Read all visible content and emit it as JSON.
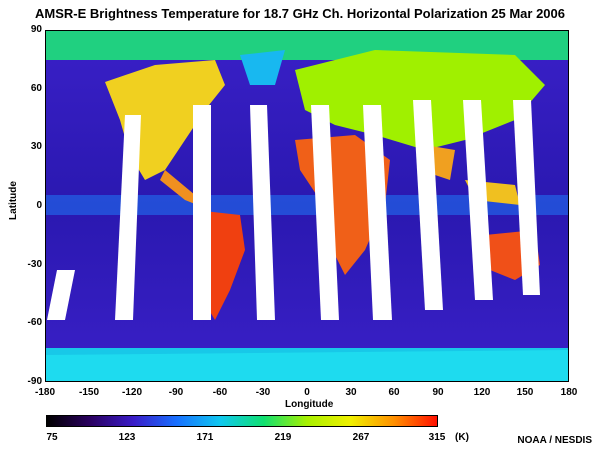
{
  "title": "AMSR-E Brightness Temperature for 18.7 GHz Ch. Horizontal Polarization  25 Mar 2006",
  "x_axis": {
    "label": "Longitude",
    "ticks": [
      "-180",
      "-150",
      "-120",
      "-90",
      "-60",
      "-30",
      "0",
      "30",
      "60",
      "90",
      "120",
      "150",
      "180"
    ],
    "values": [
      -180,
      -150,
      -120,
      -90,
      -60,
      -30,
      0,
      30,
      60,
      90,
      120,
      150,
      180
    ]
  },
  "y_axis": {
    "label": "Latitude",
    "ticks": [
      "90",
      "60",
      "30",
      "0",
      "-30",
      "-60",
      "-90"
    ],
    "values": [
      90,
      60,
      30,
      0,
      -30,
      -60,
      -90
    ]
  },
  "colorbar": {
    "ticks": [
      "75",
      "123",
      "171",
      "219",
      "267",
      "315"
    ],
    "values": [
      75,
      123,
      171,
      219,
      267,
      315
    ],
    "unit": "(K)",
    "range": [
      75,
      315
    ],
    "colors": [
      "#000000",
      "#2a0060",
      "#3a1cc8",
      "#1870ff",
      "#10c8f0",
      "#10e070",
      "#a8f000",
      "#f0f000",
      "#ff9000",
      "#ff1000"
    ]
  },
  "credit": "NOAA / NESDIS"
}
